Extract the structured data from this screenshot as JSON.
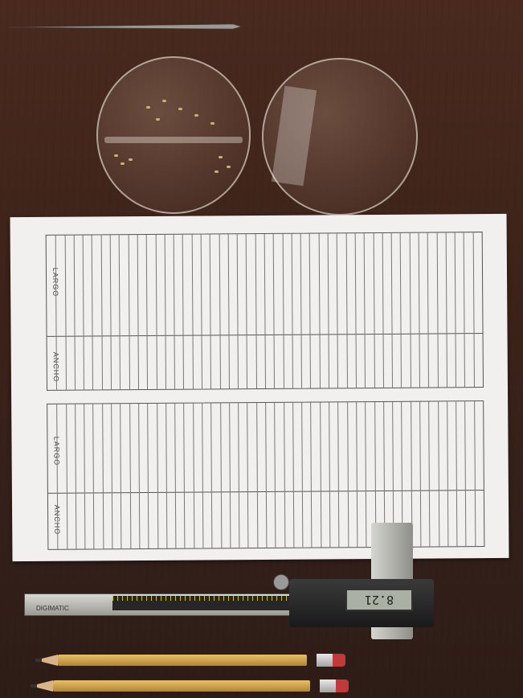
{
  "sheet": {
    "top_headers": [
      "LARGO",
      "ANCHO"
    ],
    "bottom_headers": [
      "LARGO",
      "ANCHO"
    ]
  },
  "caliper": {
    "brand": "DIGIMATIC",
    "display": "8.21"
  },
  "colors": {
    "table": "#f1f0ee",
    "paper": "#f1f0ee",
    "caliper_display": "#aab0a4",
    "pencil": "#e7c069"
  }
}
